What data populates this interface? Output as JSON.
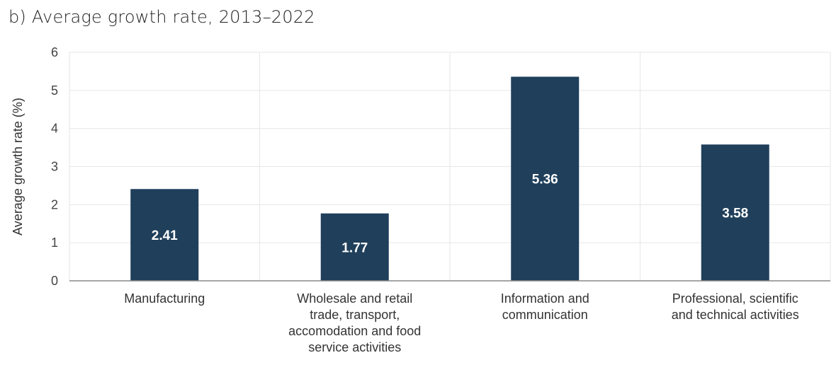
{
  "chart_data": {
    "type": "bar",
    "title": "b) Average growth rate, 2013–2022",
    "xlabel": "",
    "ylabel": "Average growth rate (%)",
    "ylim": [
      0,
      6
    ],
    "yticks": [
      0,
      1,
      2,
      3,
      4,
      5,
      6
    ],
    "grid": true,
    "categories": [
      [
        "Manufacturing"
      ],
      [
        "Wholesale and retail",
        "trade, transport,",
        "accomodation and food",
        "service activities"
      ],
      [
        "Information and",
        "communication"
      ],
      [
        "Professional, scientific",
        "and technical activities"
      ]
    ],
    "values": [
      2.41,
      1.77,
      5.36,
      3.58
    ],
    "data_labels": [
      "2.41",
      "1.77",
      "5.36",
      "3.58"
    ],
    "bar_color": "#1f3f5b"
  }
}
